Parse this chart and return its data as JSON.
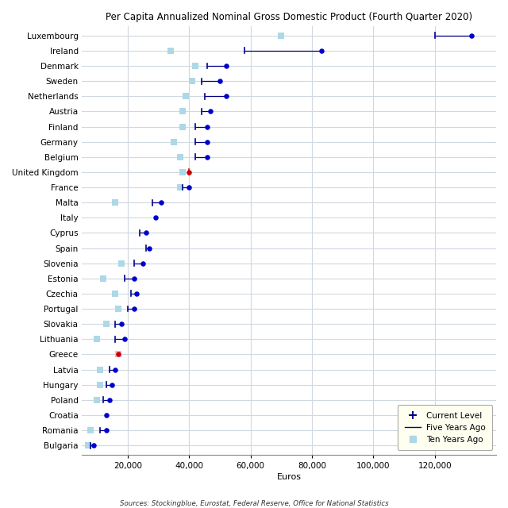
{
  "title": "Per Capita Annualized Nominal Gross Domestic Product (Fourth Quarter 2020)",
  "xlabel": "Euros",
  "source": "Sources: Stockingblue, Eurostat, Federal Reserve, Office for National Statistics",
  "countries": [
    "Luxembourg",
    "Ireland",
    "Denmark",
    "Sweden",
    "Netherlands",
    "Austria",
    "Finland",
    "Germany",
    "Belgium",
    "United Kingdom",
    "France",
    "Malta",
    "Italy",
    "Cyprus",
    "Spain",
    "Slovenia",
    "Estonia",
    "Czechia",
    "Portugal",
    "Slovakia",
    "Lithuania",
    "Greece",
    "Latvia",
    "Hungary",
    "Poland",
    "Croatia",
    "Romania",
    "Bulgaria"
  ],
  "current": [
    132000,
    83000,
    52000,
    50000,
    52000,
    47000,
    46000,
    46000,
    46000,
    40000,
    40000,
    31000,
    29000,
    26000,
    27000,
    25000,
    22000,
    23000,
    22000,
    18000,
    19000,
    17000,
    16000,
    15000,
    14000,
    13000,
    13000,
    9000
  ],
  "five_years": [
    120000,
    58000,
    46000,
    44000,
    45000,
    44000,
    42000,
    42000,
    42000,
    40000,
    38000,
    28000,
    null,
    24000,
    26000,
    22000,
    19000,
    21000,
    20000,
    16000,
    16000,
    null,
    14000,
    13000,
    12000,
    null,
    11000,
    8000
  ],
  "ten_years": [
    70000,
    34000,
    42000,
    41000,
    39000,
    38000,
    38000,
    35000,
    37000,
    38000,
    37000,
    16000,
    null,
    null,
    null,
    18000,
    12000,
    16000,
    17000,
    13000,
    10000,
    17000,
    11000,
    11000,
    10000,
    null,
    8000,
    7000
  ],
  "current_color_default": "#0000CD",
  "current_color_special_uk": "#CC0000",
  "current_color_special_greece": "#CC0000",
  "ten_color_default": "#ADD8E6",
  "ten_color_greece": "#FFB6C1",
  "five_color": "#00008B",
  "line_color_uk": "#CC0000",
  "xlim": [
    5000,
    140000
  ],
  "xticks": [
    20000,
    40000,
    60000,
    80000,
    100000,
    120000
  ],
  "background_color": "#FFFFFF",
  "plot_bg_color": "#FFFFFF",
  "grid_color": "#D0D8E0"
}
